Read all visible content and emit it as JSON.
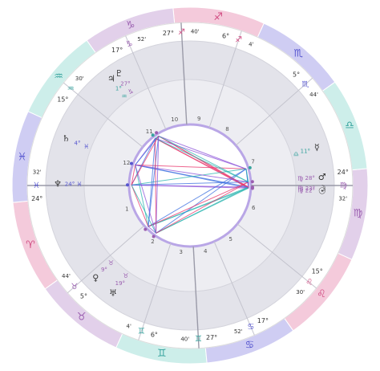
{
  "wheel": {
    "signs": [
      {
        "glyph": "♈",
        "fill": "#f4cadb",
        "color": "#d04a80"
      },
      {
        "glyph": "♉",
        "fill": "#e2d0ea",
        "color": "#9b5fb0"
      },
      {
        "glyph": "♊",
        "fill": "#cdeeea",
        "color": "#36a39d"
      },
      {
        "glyph": "♋",
        "fill": "#cfcdf3",
        "color": "#5656cf"
      },
      {
        "glyph": "♌",
        "fill": "#f4cadb",
        "color": "#d04a80"
      },
      {
        "glyph": "♍",
        "fill": "#e2d0ea",
        "color": "#9b5fb0"
      },
      {
        "glyph": "♎",
        "fill": "#cdeeea",
        "color": "#36a39d"
      },
      {
        "glyph": "♏",
        "fill": "#cfcdf3",
        "color": "#5656cf"
      },
      {
        "glyph": "♐",
        "fill": "#f4cadb",
        "color": "#d04a80"
      },
      {
        "glyph": "♑",
        "fill": "#e2d0ea",
        "color": "#9b5fb0"
      },
      {
        "glyph": "♒",
        "fill": "#cdeeea",
        "color": "#36a39d"
      },
      {
        "glyph": "♓",
        "fill": "#cfcdf3",
        "color": "#5656cf"
      }
    ],
    "cusps": [
      {
        "deg": "24°",
        "sign": "♓",
        "min": "32'"
      },
      {
        "deg": "5°",
        "sign": "♉",
        "min": "44'"
      },
      {
        "deg": "6°",
        "sign": "♊",
        "min": "4'"
      },
      {
        "deg": "27°",
        "sign": "♊",
        "min": "40'"
      },
      {
        "deg": "17°",
        "sign": "♋",
        "min": "52'"
      },
      {
        "deg": "15°",
        "sign": "♌",
        "min": "30'"
      },
      {
        "deg": "24°",
        "sign": "♍",
        "min": "32'"
      },
      {
        "deg": "5°",
        "sign": "♏",
        "min": "44'"
      },
      {
        "deg": "6°",
        "sign": "♐",
        "min": "4'"
      },
      {
        "deg": "27°",
        "sign": "♐",
        "min": "40'"
      },
      {
        "deg": "17°",
        "sign": "♑",
        "min": "52'"
      },
      {
        "deg": "15°",
        "sign": "♒",
        "min": "30'"
      }
    ],
    "houses": [
      "1",
      "2",
      "3",
      "4",
      "5",
      "6",
      "7",
      "8",
      "9",
      "10",
      "11",
      "12"
    ],
    "planets": [
      {
        "glyph": "☉",
        "deg": "22°",
        "sign": "♍"
      },
      {
        "glyph": "☽",
        "deg": "23°",
        "sign": "♍"
      },
      {
        "glyph": "☿",
        "deg": "11°",
        "sign": "♎"
      },
      {
        "glyph": "♀",
        "deg": "9°",
        "sign": "♉"
      },
      {
        "glyph": "♂",
        "deg": "28°",
        "sign": "♍"
      },
      {
        "glyph": "♃",
        "deg": "1°",
        "sign": "♒"
      },
      {
        "glyph": "♄",
        "deg": "4°",
        "sign": "♓"
      },
      {
        "glyph": "♅",
        "deg": "19°",
        "sign": "♉"
      },
      {
        "glyph": "♆",
        "deg": "24°",
        "sign": "♓"
      },
      {
        "glyph": "♇",
        "deg": "27°",
        "sign": "♑"
      }
    ],
    "aspect_colors": [
      "#e8336a",
      "#3b6fe0",
      "#2ab5b0",
      "#8a4fd8"
    ]
  }
}
